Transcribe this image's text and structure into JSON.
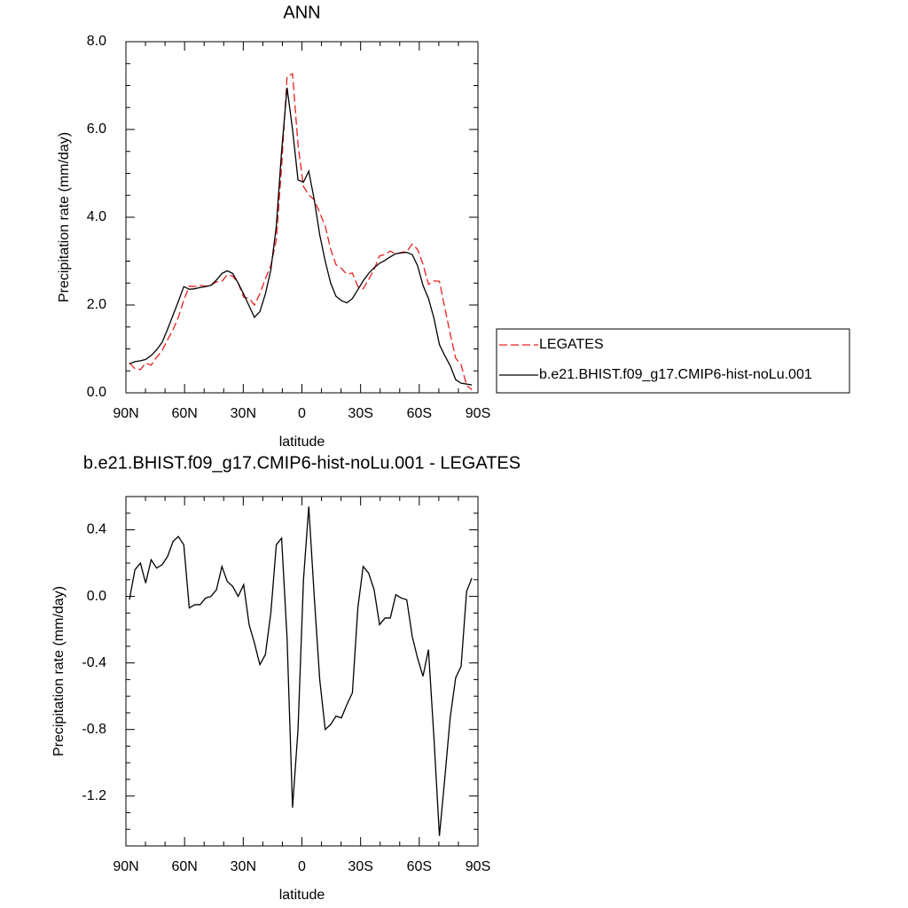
{
  "chart_data": [
    {
      "type": "line",
      "title": "ANN",
      "xlabel": "latitude",
      "ylabel": "Precipitation rate (mm/day)",
      "x": [
        88.2,
        85.4,
        82.6,
        79.9,
        77.1,
        74.3,
        71.5,
        68.7,
        65.9,
        63.2,
        60.4,
        57.6,
        54.8,
        52.1,
        49.3,
        46.5,
        43.7,
        40.9,
        38.2,
        35.4,
        32.6,
        29.8,
        27.0,
        24.3,
        21.5,
        18.7,
        15.9,
        13.1,
        10.4,
        7.6,
        4.8,
        2.0,
        -0.8,
        -3.5,
        -6.3,
        -9.1,
        -11.9,
        -14.7,
        -17.4,
        -20.2,
        -23.0,
        -25.8,
        -28.6,
        -31.3,
        -34.1,
        -36.9,
        -39.7,
        -42.5,
        -45.2,
        -48.0,
        -50.8,
        -53.6,
        -56.4,
        -59.1,
        -61.9,
        -64.7,
        -67.5,
        -70.3,
        -73.0,
        -75.8,
        -78.6,
        -81.4,
        -84.2,
        -86.9
      ],
      "series": [
        {
          "name": "LEGATES",
          "color": "#e8201f",
          "line_style": "dashed",
          "values": [
            0.68,
            0.55,
            0.53,
            0.68,
            0.63,
            0.81,
            0.96,
            1.21,
            1.44,
            1.72,
            2.11,
            2.43,
            2.42,
            2.45,
            2.43,
            2.45,
            2.53,
            2.54,
            2.69,
            2.66,
            2.5,
            2.18,
            2.15,
            2.0,
            2.26,
            2.6,
            2.9,
            3.49,
            5.15,
            7.2,
            7.27,
            5.65,
            4.7,
            4.51,
            4.4,
            4.1,
            3.8,
            3.27,
            2.92,
            2.83,
            2.7,
            2.73,
            2.42,
            2.37,
            2.58,
            2.81,
            3.12,
            3.15,
            3.23,
            3.16,
            3.2,
            3.22,
            3.39,
            3.27,
            2.93,
            2.47,
            2.55,
            2.54,
            1.95,
            1.35,
            0.79,
            0.64,
            0.17,
            0.07
          ]
        },
        {
          "name": "b.e21.BHIST.f09_g17.CMIP6-hist-noLu.001",
          "color": "#000000",
          "line_style": "solid",
          "values": [
            0.66,
            0.71,
            0.73,
            0.76,
            0.85,
            0.98,
            1.15,
            1.45,
            1.77,
            2.08,
            2.42,
            2.36,
            2.37,
            2.4,
            2.42,
            2.45,
            2.57,
            2.72,
            2.78,
            2.72,
            2.5,
            2.25,
            1.98,
            1.72,
            1.85,
            2.25,
            2.8,
            3.8,
            5.5,
            6.95,
            6.0,
            4.85,
            4.8,
            5.05,
            4.4,
            3.6,
            3.0,
            2.5,
            2.2,
            2.1,
            2.05,
            2.15,
            2.35,
            2.55,
            2.72,
            2.85,
            2.95,
            3.02,
            3.1,
            3.17,
            3.19,
            3.2,
            3.15,
            2.9,
            2.45,
            2.15,
            1.7,
            1.1,
            0.85,
            0.62,
            0.3,
            0.22,
            0.2,
            0.18
          ]
        }
      ],
      "xlim": [
        90,
        -90
      ],
      "xticks": [
        {
          "value": 90,
          "label": "90N"
        },
        {
          "value": 60,
          "label": "60N"
        },
        {
          "value": 30,
          "label": "30N"
        },
        0,
        {
          "value": -30,
          "label": "30S"
        },
        {
          "value": -60,
          "label": "60S"
        },
        {
          "value": -90,
          "label": "90S"
        }
      ],
      "ylim": [
        0,
        8
      ],
      "yticks": [
        {
          "value": 0,
          "label": "0.0"
        },
        {
          "value": 2,
          "label": "2.0"
        },
        {
          "value": 4,
          "label": "4.0"
        },
        {
          "value": 6,
          "label": "6.0"
        },
        {
          "value": 8,
          "label": "8.0"
        }
      ],
      "legend": "right"
    },
    {
      "type": "line",
      "title": "b.e21.BHIST.f09_g17.CMIP6-hist-noLu.001 - LEGATES",
      "xlabel": "latitude",
      "ylabel": "Precipitation rate (mm/day)",
      "x": [
        88.2,
        85.4,
        82.6,
        79.9,
        77.1,
        74.3,
        71.5,
        68.7,
        65.9,
        63.2,
        60.4,
        57.6,
        54.8,
        52.1,
        49.3,
        46.5,
        43.7,
        40.9,
        38.2,
        35.4,
        32.6,
        29.8,
        27.0,
        24.3,
        21.5,
        18.7,
        15.9,
        13.1,
        10.4,
        7.6,
        4.8,
        2.0,
        -0.8,
        -3.5,
        -6.3,
        -9.1,
        -11.9,
        -14.7,
        -17.4,
        -20.2,
        -23.0,
        -25.8,
        -28.6,
        -31.3,
        -34.1,
        -36.9,
        -39.7,
        -42.5,
        -45.2,
        -48.0,
        -50.8,
        -53.6,
        -56.4,
        -59.1,
        -61.9,
        -64.7,
        -67.5,
        -70.3,
        -73.0,
        -75.8,
        -78.6,
        -81.4,
        -84.2,
        -86.9
      ],
      "series": [
        {
          "color": "#000000",
          "line_style": "solid",
          "values": [
            -0.02,
            0.16,
            0.2,
            0.08,
            0.22,
            0.17,
            0.19,
            0.24,
            0.33,
            0.36,
            0.31,
            -0.07,
            -0.05,
            -0.05,
            -0.01,
            0.0,
            0.04,
            0.18,
            0.09,
            0.06,
            0.0,
            0.07,
            -0.17,
            -0.28,
            -0.41,
            -0.35,
            -0.1,
            0.31,
            0.35,
            -0.25,
            -1.27,
            -0.8,
            0.1,
            0.54,
            0.0,
            -0.5,
            -0.8,
            -0.77,
            -0.72,
            -0.73,
            -0.65,
            -0.58,
            -0.07,
            0.18,
            0.14,
            0.04,
            -0.17,
            -0.13,
            -0.13,
            0.01,
            -0.01,
            -0.02,
            -0.24,
            -0.37,
            -0.48,
            -0.32,
            -0.85,
            -1.44,
            -1.1,
            -0.73,
            -0.49,
            -0.42,
            0.03,
            0.11
          ]
        }
      ],
      "xlim": [
        90,
        -90
      ],
      "xticks": [
        {
          "value": 90,
          "label": "90N"
        },
        {
          "value": 60,
          "label": "60N"
        },
        {
          "value": 30,
          "label": "30N"
        },
        0,
        {
          "value": -30,
          "label": "30S"
        },
        {
          "value": -60,
          "label": "60S"
        },
        {
          "value": -90,
          "label": "90S"
        }
      ],
      "ylim": [
        -1.5,
        0.6
      ],
      "yticks": [
        0.4,
        {
          "value": 0,
          "label": "0.0"
        },
        -0.4,
        -0.8,
        -1.2
      ]
    }
  ]
}
